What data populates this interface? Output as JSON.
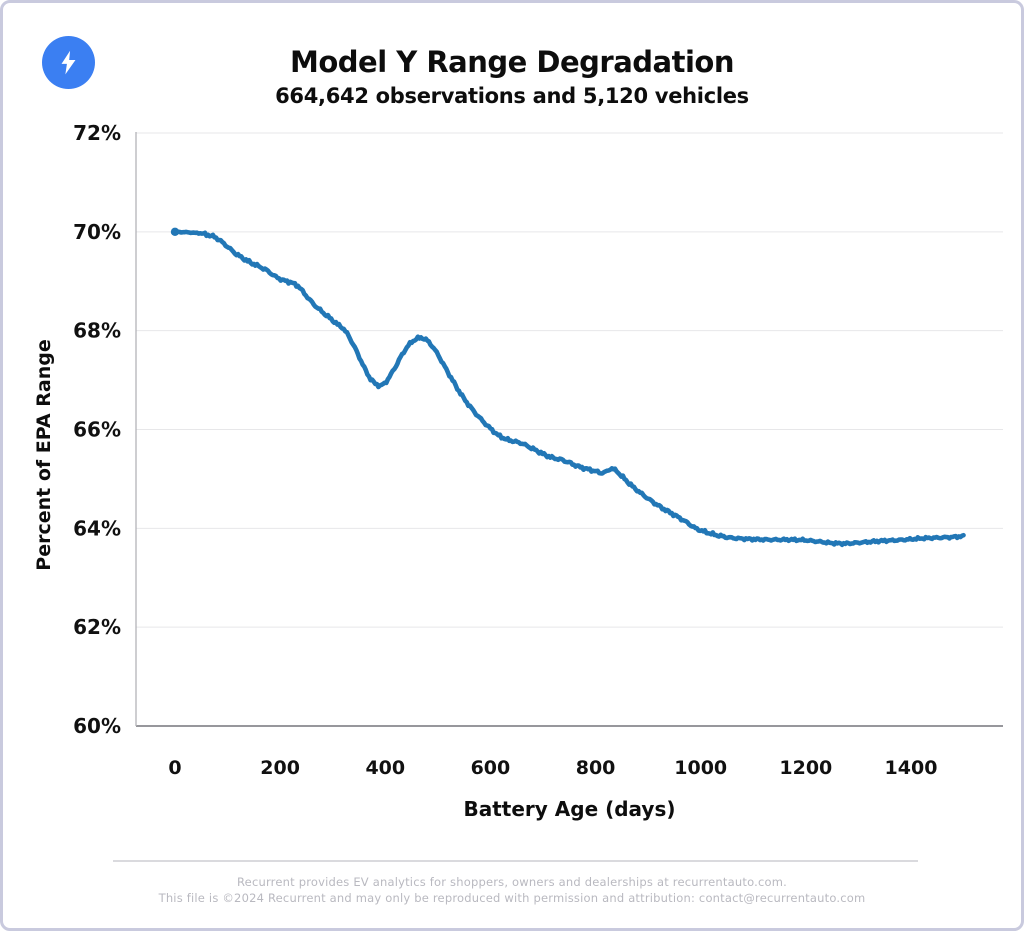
{
  "header": {
    "logo_icon": "lightning-bolt-icon",
    "logo_color": "#3b7ff2",
    "title": "Model Y Range Degradation",
    "subtitle": "664,642 observations and 5,120 vehicles"
  },
  "chart_data": {
    "type": "line",
    "title": "Model Y Range Degradation",
    "subtitle": "664,642 observations and 5,120 vehicles",
    "xlabel": "Battery Age (days)",
    "ylabel": "Percent of EPA Range",
    "x_ticks": [
      0,
      200,
      400,
      600,
      800,
      1000,
      1200,
      1400
    ],
    "y_ticks": [
      60,
      62,
      64,
      66,
      68,
      70,
      72
    ],
    "y_tick_suffix": "%",
    "xlim": [
      -75,
      1575
    ],
    "ylim": [
      60,
      72
    ],
    "grid": "horizontal",
    "legend": "none",
    "line_color": "#2277b6",
    "series": [
      {
        "points": [
          [
            0,
            70.0
          ],
          [
            25,
            69.99
          ],
          [
            50,
            69.97
          ],
          [
            65,
            69.93
          ],
          [
            75,
            69.9
          ],
          [
            85,
            69.83
          ],
          [
            100,
            69.7
          ],
          [
            115,
            69.56
          ],
          [
            130,
            69.46
          ],
          [
            145,
            69.37
          ],
          [
            160,
            69.3
          ],
          [
            175,
            69.22
          ],
          [
            190,
            69.1
          ],
          [
            205,
            69.02
          ],
          [
            220,
            68.98
          ],
          [
            235,
            68.9
          ],
          [
            250,
            68.7
          ],
          [
            265,
            68.52
          ],
          [
            280,
            68.38
          ],
          [
            295,
            68.25
          ],
          [
            310,
            68.12
          ],
          [
            320,
            68.05
          ],
          [
            330,
            67.9
          ],
          [
            340,
            67.7
          ],
          [
            350,
            67.48
          ],
          [
            360,
            67.25
          ],
          [
            370,
            67.05
          ],
          [
            380,
            66.93
          ],
          [
            390,
            66.88
          ],
          [
            400,
            66.94
          ],
          [
            410,
            67.1
          ],
          [
            420,
            67.28
          ],
          [
            430,
            67.48
          ],
          [
            440,
            67.65
          ],
          [
            450,
            67.77
          ],
          [
            460,
            67.84
          ],
          [
            470,
            67.86
          ],
          [
            480,
            67.8
          ],
          [
            490,
            67.68
          ],
          [
            500,
            67.52
          ],
          [
            510,
            67.33
          ],
          [
            520,
            67.14
          ],
          [
            530,
            66.96
          ],
          [
            540,
            66.78
          ],
          [
            550,
            66.62
          ],
          [
            560,
            66.48
          ],
          [
            570,
            66.35
          ],
          [
            580,
            66.23
          ],
          [
            590,
            66.12
          ],
          [
            600,
            66.02
          ],
          [
            615,
            65.88
          ],
          [
            630,
            65.8
          ],
          [
            645,
            65.76
          ],
          [
            660,
            65.72
          ],
          [
            675,
            65.64
          ],
          [
            690,
            65.56
          ],
          [
            705,
            65.48
          ],
          [
            720,
            65.42
          ],
          [
            735,
            65.39
          ],
          [
            750,
            65.33
          ],
          [
            765,
            65.26
          ],
          [
            780,
            65.21
          ],
          [
            795,
            65.17
          ],
          [
            810,
            65.12
          ],
          [
            820,
            65.14
          ],
          [
            830,
            65.22
          ],
          [
            840,
            65.16
          ],
          [
            855,
            65.0
          ],
          [
            870,
            64.85
          ],
          [
            885,
            64.72
          ],
          [
            900,
            64.6
          ],
          [
            915,
            64.49
          ],
          [
            930,
            64.39
          ],
          [
            945,
            64.3
          ],
          [
            960,
            64.21
          ],
          [
            975,
            64.11
          ],
          [
            990,
            64.0
          ],
          [
            1005,
            63.94
          ],
          [
            1020,
            63.89
          ],
          [
            1035,
            63.85
          ],
          [
            1050,
            63.82
          ],
          [
            1065,
            63.8
          ],
          [
            1080,
            63.79
          ],
          [
            1100,
            63.78
          ],
          [
            1125,
            63.77
          ],
          [
            1150,
            63.77
          ],
          [
            1175,
            63.77
          ],
          [
            1200,
            63.76
          ],
          [
            1225,
            63.73
          ],
          [
            1250,
            63.7
          ],
          [
            1275,
            63.69
          ],
          [
            1300,
            63.71
          ],
          [
            1325,
            63.73
          ],
          [
            1350,
            63.75
          ],
          [
            1375,
            63.76
          ],
          [
            1400,
            63.78
          ],
          [
            1425,
            63.8
          ],
          [
            1450,
            63.81
          ],
          [
            1475,
            63.82
          ],
          [
            1500,
            63.84
          ]
        ]
      }
    ]
  },
  "footer": {
    "line1": "Recurrent provides EV analytics for shoppers, owners and dealerships at recurrentauto.com.",
    "line2": "This file is ©2024 Recurrent and may only be reproduced with permission and attribution: contact@recurrentauto.com"
  }
}
